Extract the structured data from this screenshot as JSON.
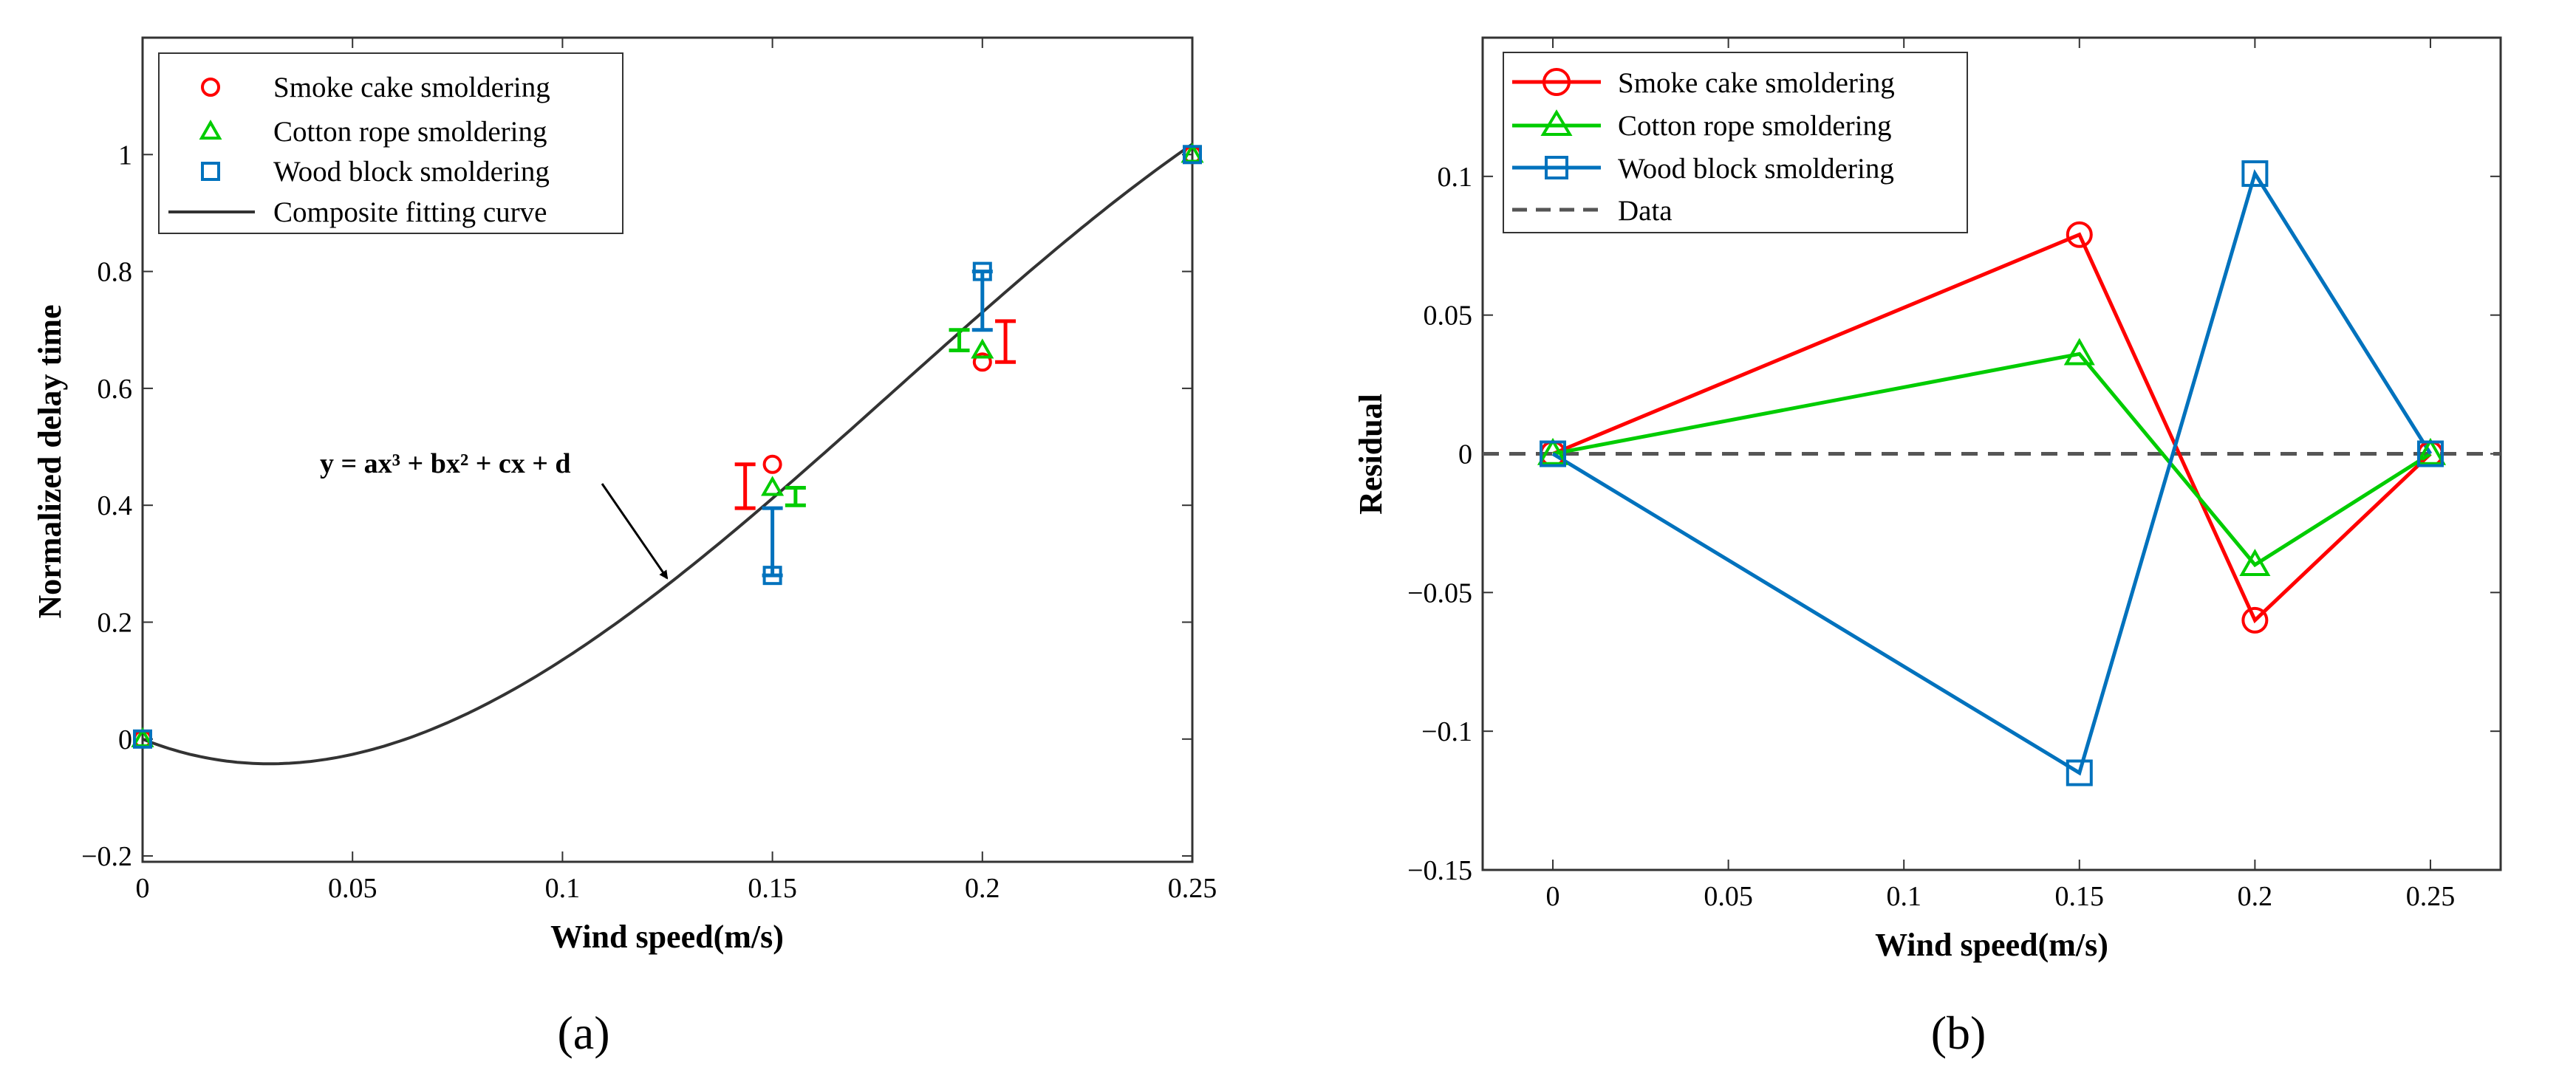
{
  "chart_data": [
    {
      "type": "scatter",
      "panel": "a",
      "caption": "(a)",
      "xlabel": "Wind speed(m/s)",
      "ylabel": "Normalized delay time",
      "xlim": [
        0,
        0.25
      ],
      "ylim": [
        -0.21,
        1.2
      ],
      "xticks": [
        0,
        0.05,
        0.1,
        0.15,
        0.2,
        0.25
      ],
      "xtick_labels": [
        "0",
        "0.05",
        "0.1",
        "0.15",
        "0.2",
        "0.25"
      ],
      "yticks": [
        -0.2,
        0,
        0.2,
        0.4,
        0.6,
        0.8,
        1
      ],
      "ytick_labels": [
        "−0.2",
        "0",
        "0.2",
        "0.4",
        "0.6",
        "0.8",
        "1"
      ],
      "legend_position": "top-left",
      "annotation": {
        "text": "y = ax³ + bx² + cx + d",
        "arrow_from": [
          0.122,
          0.42
        ],
        "arrow_to": [
          0.126,
          0.28
        ]
      },
      "series": [
        {
          "name": "Smoke cake smoldering",
          "color": "#ff0000",
          "marker": "circle",
          "x": [
            0,
            0.15,
            0.2,
            0.25
          ],
          "y": [
            0,
            0.47,
            0.645,
            1
          ],
          "errorbars": [
            {
              "x": 0.1435,
              "low": 0.395,
              "high": 0.47
            },
            {
              "x": 0.2055,
              "low": 0.645,
              "high": 0.715
            }
          ]
        },
        {
          "name": "Cotton rope smoldering",
          "color": "#00cc00",
          "marker": "triangle",
          "x": [
            0,
            0.15,
            0.2,
            0.25
          ],
          "y": [
            0,
            0.43,
            0.665,
            1
          ],
          "errorbars": [
            {
              "x": 0.1555,
              "low": 0.4,
              "high": 0.43
            },
            {
              "x": 0.1945,
              "low": 0.665,
              "high": 0.7
            }
          ]
        },
        {
          "name": "Wood block smoldering",
          "color": "#0072bd",
          "marker": "square",
          "x": [
            0,
            0.15,
            0.2,
            0.25
          ],
          "y": [
            0,
            0.28,
            0.8,
            1
          ],
          "errorbars": [
            {
              "x": 0.15,
              "low": 0.28,
              "high": 0.395
            },
            {
              "x": 0.2,
              "low": 0.7,
              "high": 0.8
            }
          ]
        },
        {
          "name": "Composite fitting curve",
          "color": "#333333",
          "marker": "none",
          "line": true,
          "coefficients": {
            "a": -97.1,
            "b": 52.1,
            "c": -2.885,
            "d": 0
          }
        }
      ]
    },
    {
      "type": "line",
      "panel": "b",
      "caption": "(b)",
      "xlabel": "Wind speed(m/s)",
      "ylabel": "Residual",
      "xlim": [
        -0.02,
        0.27
      ],
      "ylim": [
        -0.15,
        0.15
      ],
      "xticks": [
        0,
        0.05,
        0.1,
        0.15,
        0.2,
        0.25
      ],
      "xtick_labels": [
        "0",
        "0.05",
        "0.1",
        "0.15",
        "0.2",
        "0.25"
      ],
      "yticks": [
        -0.15,
        -0.1,
        -0.05,
        0,
        0.05,
        0.1
      ],
      "ytick_labels": [
        "−0.15",
        "−0.1",
        "−0.05",
        "0",
        "0.05",
        "0.1"
      ],
      "legend_position": "top-left",
      "series": [
        {
          "name": "Smoke cake smoldering",
          "color": "#ff0000",
          "marker": "circle",
          "x": [
            0,
            0.15,
            0.2,
            0.25
          ],
          "y": [
            0,
            0.079,
            -0.06,
            0
          ]
        },
        {
          "name": "Cotton rope smoldering",
          "color": "#00cc00",
          "marker": "triangle",
          "x": [
            0,
            0.15,
            0.2,
            0.25
          ],
          "y": [
            0,
            0.036,
            -0.04,
            0
          ]
        },
        {
          "name": "Wood block smoldering",
          "color": "#0072bd",
          "marker": "square",
          "x": [
            0,
            0.15,
            0.2,
            0.25
          ],
          "y": [
            0,
            -0.115,
            0.101,
            0
          ]
        },
        {
          "name": "Data",
          "color": "#555555",
          "marker": "none",
          "dashed": true,
          "x": [
            -0.02,
            0.27
          ],
          "y": [
            0,
            0
          ]
        }
      ]
    }
  ]
}
